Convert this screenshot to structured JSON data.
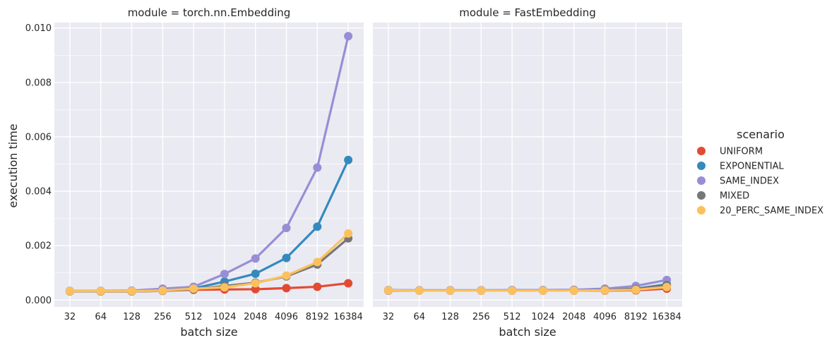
{
  "chart_data": {
    "type": "line",
    "ylabel": "execution time",
    "xlabel": "batch size",
    "categories": [
      "32",
      "64",
      "128",
      "256",
      "512",
      "1024",
      "2048",
      "4096",
      "8192",
      "16384"
    ],
    "yticks": [
      "0.000",
      "0.002",
      "0.004",
      "0.006",
      "0.008",
      "0.010"
    ],
    "ylim": [
      -0.00025,
      0.0102
    ],
    "grid": true,
    "legend": {
      "title": "scenario",
      "placement": "right",
      "entries": [
        "UNIFORM",
        "EXPONENTIAL",
        "SAME_INDEX",
        "MIXED",
        "20_PERC_SAME_INDEX"
      ]
    },
    "series_colors": {
      "UNIFORM": "#e24a33",
      "EXPONENTIAL": "#348abd",
      "SAME_INDEX": "#988ed5",
      "MIXED": "#777777",
      "20_PERC_SAME_INDEX": "#fbc15e"
    },
    "panels": [
      {
        "title": "module = torch.nn.Embedding",
        "series": [
          {
            "name": "UNIFORM",
            "values": [
              0.00033,
              0.00032,
              0.00032,
              0.00034,
              0.00038,
              0.00039,
              0.0004,
              0.00044,
              0.00049,
              0.00062
            ]
          },
          {
            "name": "EXPONENTIAL",
            "values": [
              0.00033,
              0.00033,
              0.00033,
              0.00036,
              0.00043,
              0.00068,
              0.00097,
              0.00155,
              0.0027,
              0.00515
            ]
          },
          {
            "name": "SAME_INDEX",
            "values": [
              0.00034,
              0.00034,
              0.00035,
              0.00042,
              0.00049,
              0.00096,
              0.00153,
              0.00265,
              0.00487,
              0.0097
            ]
          },
          {
            "name": "MIXED",
            "values": [
              0.00032,
              0.00032,
              0.00032,
              0.00034,
              0.0004,
              0.00052,
              0.00064,
              0.00087,
              0.00131,
              0.00227
            ]
          },
          {
            "name": "20_PERC_SAME_INDEX",
            "values": [
              0.00033,
              0.00033,
              0.00033,
              0.00035,
              0.00042,
              0.00047,
              0.00062,
              0.0009,
              0.0014,
              0.00245
            ]
          }
        ]
      },
      {
        "title": "module = FastEmbedding",
        "series": [
          {
            "name": "UNIFORM",
            "values": [
              0.00035,
              0.00035,
              0.00035,
              0.00035,
              0.00035,
              0.00035,
              0.00035,
              0.00035,
              0.00036,
              0.00042
            ]
          },
          {
            "name": "EXPONENTIAL",
            "values": [
              0.00036,
              0.00036,
              0.00036,
              0.00036,
              0.00036,
              0.00036,
              0.00036,
              0.00038,
              0.00042,
              0.00058
            ]
          },
          {
            "name": "SAME_INDEX",
            "values": [
              0.00037,
              0.00036,
              0.00036,
              0.00036,
              0.00037,
              0.00037,
              0.00038,
              0.00042,
              0.00052,
              0.00074
            ]
          },
          {
            "name": "MIXED",
            "values": [
              0.00036,
              0.00035,
              0.00035,
              0.00035,
              0.00035,
              0.00035,
              0.00035,
              0.00037,
              0.00041,
              0.00055
            ]
          },
          {
            "name": "20_PERC_SAME_INDEX",
            "values": [
              0.00036,
              0.00035,
              0.00035,
              0.00035,
              0.00035,
              0.00035,
              0.00035,
              0.00036,
              0.00038,
              0.00048
            ]
          }
        ]
      }
    ]
  }
}
